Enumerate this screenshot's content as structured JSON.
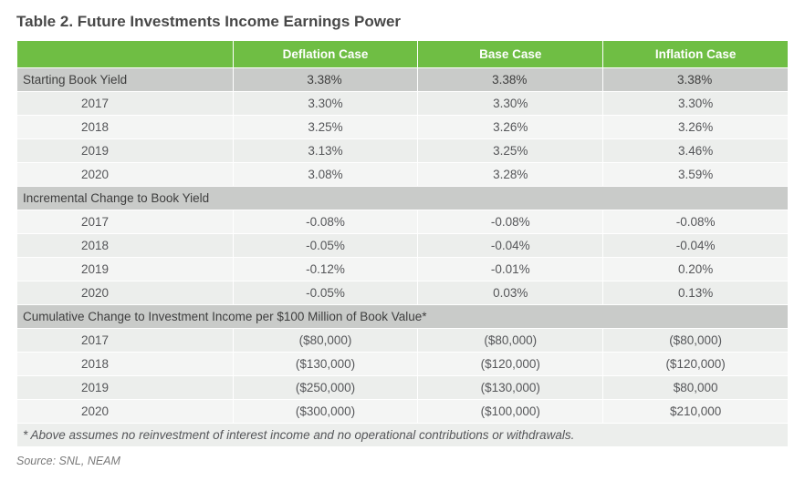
{
  "title": "Table 2. Future Investments Income Earnings Power",
  "columns": {
    "c1": "Deflation Case",
    "c2": "Base Case",
    "c3": "Inflation Case"
  },
  "starting": {
    "label": "Starting Book Yield",
    "v1": "3.38%",
    "v2": "3.38%",
    "v3": "3.38%"
  },
  "yield": {
    "y2017": {
      "label": "2017",
      "v1": "3.30%",
      "v2": "3.30%",
      "v3": "3.30%"
    },
    "y2018": {
      "label": "2018",
      "v1": "3.25%",
      "v2": "3.26%",
      "v3": "3.26%"
    },
    "y2019": {
      "label": "2019",
      "v1": "3.13%",
      "v2": "3.25%",
      "v3": "3.46%"
    },
    "y2020": {
      "label": "2020",
      "v1": "3.08%",
      "v2": "3.28%",
      "v3": "3.59%"
    }
  },
  "section2": "Incremental Change to Book Yield",
  "incr": {
    "y2017": {
      "label": "2017",
      "v1": "-0.08%",
      "v2": "-0.08%",
      "v3": "-0.08%"
    },
    "y2018": {
      "label": "2018",
      "v1": "-0.05%",
      "v2": "-0.04%",
      "v3": "-0.04%"
    },
    "y2019": {
      "label": "2019",
      "v1": "-0.12%",
      "v2": "-0.01%",
      "v3": "0.20%"
    },
    "y2020": {
      "label": "2020",
      "v1": "-0.05%",
      "v2": "0.03%",
      "v3": "0.13%"
    }
  },
  "section3": "Cumulative Change to Investment Income per $100 Million of Book Value*",
  "cum": {
    "y2017": {
      "label": "2017",
      "v1": "($80,000)",
      "v2": "($80,000)",
      "v3": "($80,000)"
    },
    "y2018": {
      "label": "2018",
      "v1": "($130,000)",
      "v2": "($120,000)",
      "v3": "($120,000)"
    },
    "y2019": {
      "label": "2019",
      "v1": "($250,000)",
      "v2": "($130,000)",
      "v3": "$80,000"
    },
    "y2020": {
      "label": "2020",
      "v1": "($300,000)",
      "v2": "($100,000)",
      "v3": "$210,000"
    }
  },
  "footnote": "* Above assumes no reinvestment of interest income and no operational contributions or withdrawals.",
  "source": "Source:  SNL, NEAM",
  "colors": {
    "header_bg": "#6fbe44",
    "header_text": "#ffffff",
    "row_a": "#f4f5f4",
    "row_b": "#eceeec",
    "section_bg": "#c9cbc9",
    "text": "#555659"
  }
}
